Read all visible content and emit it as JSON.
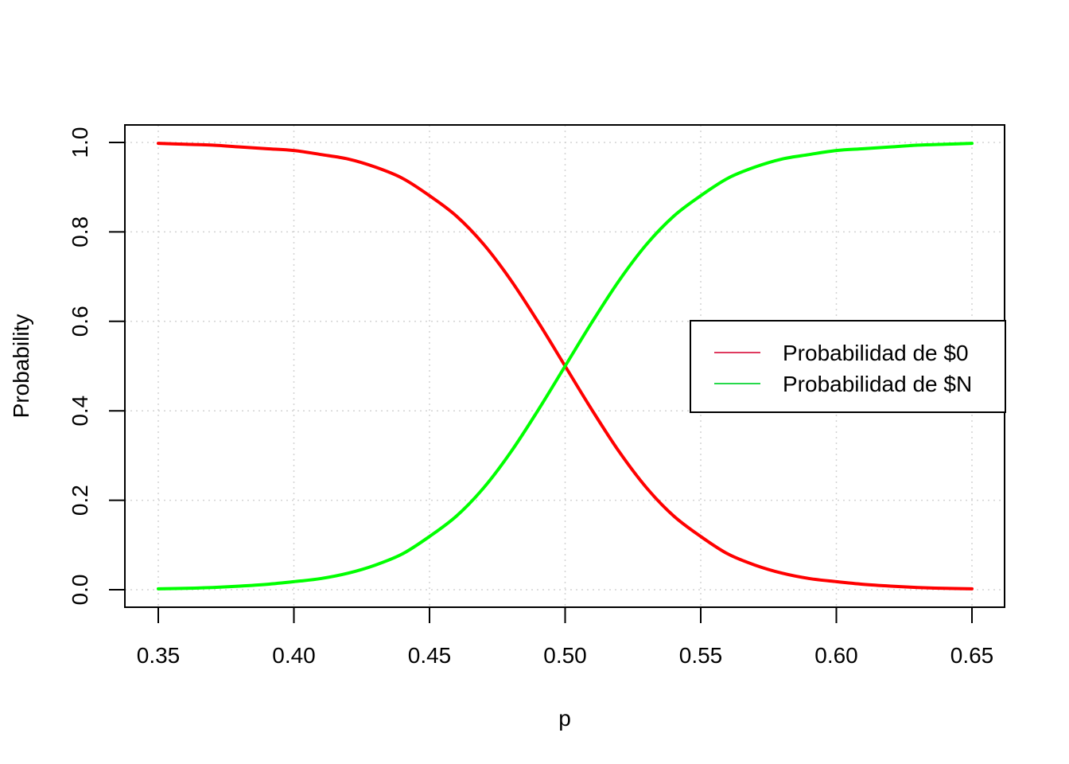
{
  "chart_data": {
    "type": "line",
    "title": "",
    "xlabel": "p",
    "ylabel": "Probability",
    "xlim": [
      0.35,
      0.65
    ],
    "ylim": [
      0.0,
      1.0
    ],
    "x_ticks": [
      "0.35",
      "0.40",
      "0.45",
      "0.50",
      "0.55",
      "0.60",
      "0.65"
    ],
    "y_ticks": [
      "0.0",
      "0.2",
      "0.4",
      "0.6",
      "0.8",
      "1.0"
    ],
    "grid": true,
    "legend_position": "right",
    "x": [
      0.35,
      0.36,
      0.37,
      0.38,
      0.39,
      0.4,
      0.41,
      0.42,
      0.43,
      0.44,
      0.45,
      0.46,
      0.47,
      0.48,
      0.49,
      0.5,
      0.51,
      0.52,
      0.53,
      0.54,
      0.55,
      0.56,
      0.57,
      0.58,
      0.59,
      0.6,
      0.61,
      0.62,
      0.63,
      0.64,
      0.65
    ],
    "series": [
      {
        "name": "Probabilidad de $0",
        "color": "#ff0000",
        "legend_color": "#df3a5f",
        "values": [
          0.998,
          0.996,
          0.994,
          0.99,
          0.986,
          0.982,
          0.973,
          0.963,
          0.945,
          0.92,
          0.881,
          0.835,
          0.772,
          0.692,
          0.599,
          0.5,
          0.401,
          0.308,
          0.228,
          0.165,
          0.119,
          0.08,
          0.055,
          0.037,
          0.025,
          0.018,
          0.012,
          0.008,
          0.005,
          0.003,
          0.002
        ]
      },
      {
        "name": "Probabilidad de $N",
        "color": "#00ff00",
        "legend_color": "#27d94b",
        "values": [
          0.002,
          0.003,
          0.005,
          0.008,
          0.012,
          0.018,
          0.025,
          0.037,
          0.055,
          0.08,
          0.119,
          0.165,
          0.228,
          0.308,
          0.401,
          0.5,
          0.599,
          0.692,
          0.772,
          0.835,
          0.881,
          0.92,
          0.945,
          0.963,
          0.973,
          0.982,
          0.986,
          0.99,
          0.994,
          0.996,
          0.998
        ]
      }
    ]
  }
}
